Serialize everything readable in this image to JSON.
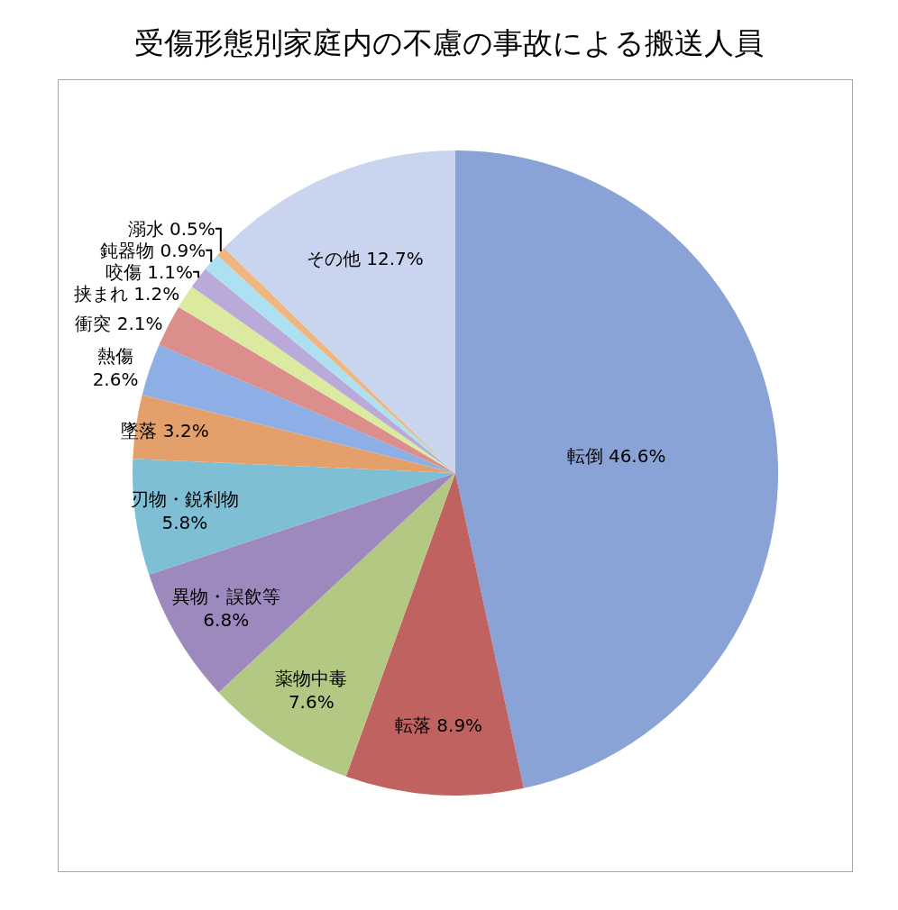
{
  "chart_data": {
    "type": "pie",
    "title": "受傷形態別家庭内の不慮の事故による搬送人員",
    "categories": [
      "転倒",
      "転落",
      "薬物中毒",
      "異物・誤飲等",
      "刃物・鋭利物",
      "墜落",
      "熱傷",
      "衝突",
      "挟まれ",
      "咬傷",
      "鈍器物",
      "溺水",
      "その他"
    ],
    "values": [
      46.6,
      8.9,
      7.6,
      6.8,
      5.8,
      3.2,
      2.6,
      2.1,
      1.2,
      1.1,
      0.9,
      0.5,
      12.7
    ],
    "colors": [
      "#89a3d6",
      "#c06360",
      "#b3c983",
      "#9d89bd",
      "#7ebfd6",
      "#e3a06a",
      "#8eaee6",
      "#dc8e8c",
      "#dbea9e",
      "#baaad9",
      "#ade0f0",
      "#f0b67f",
      "#c9d4ef"
    ],
    "value_labels": [
      "46.6%",
      "8.9%",
      "7.6%",
      "6.8%",
      "5.8%",
      "3.2%",
      "2.6%",
      "2.1%",
      "1.2%",
      "1.1%",
      "0.9%",
      "0.5%",
      "12.7%"
    ]
  }
}
